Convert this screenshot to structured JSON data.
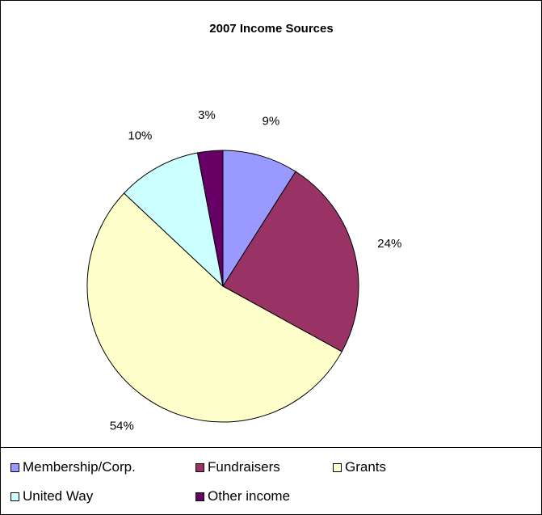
{
  "chart_data": {
    "type": "pie",
    "title": "2007 Income Sources",
    "slices": [
      {
        "label": "Membership/Corp.",
        "value": 9,
        "display": "9%",
        "color": "#9999ff"
      },
      {
        "label": "Fundraisers",
        "value": 24,
        "display": "24%",
        "color": "#993366"
      },
      {
        "label": "Grants",
        "value": 54,
        "display": "54%",
        "color": "#ffffcc"
      },
      {
        "label": "United Way",
        "value": 10,
        "display": "10%",
        "color": "#ccffff"
      },
      {
        "label": "Other income",
        "value": 3,
        "display": "3%",
        "color": "#660066"
      }
    ],
    "legend_position": "bottom"
  }
}
